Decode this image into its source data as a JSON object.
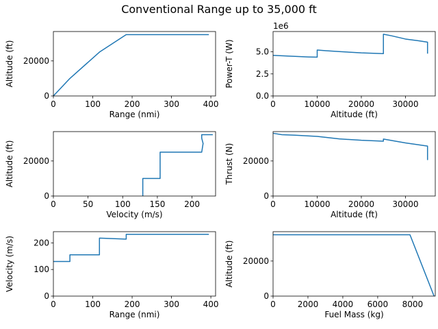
{
  "figure": {
    "title": "Conventional Range up to 35,000 ft"
  },
  "colors": {
    "line": "#1f77b4",
    "axes": "#000000",
    "background": "#ffffff"
  },
  "chart_data": [
    {
      "type": "line",
      "xlabel": "Range (nmi)",
      "ylabel": "Altitude (ft)",
      "xlim": [
        0,
        412
      ],
      "ylim": [
        0,
        36750
      ],
      "xticks": [
        0,
        100,
        200,
        300,
        400
      ],
      "xticklabels": [
        "0",
        "100",
        "200",
        "300",
        "400"
      ],
      "yticks": [
        0,
        20000
      ],
      "yticklabels": [
        "0",
        "20000"
      ],
      "offset_text": "",
      "series": [
        {
          "x": [
            0,
            42,
            117,
            185,
            395
          ],
          "y": [
            0,
            10000,
            25000,
            35000,
            35000
          ]
        }
      ]
    },
    {
      "type": "line",
      "xlabel": "Altitude (ft)",
      "ylabel": "Power-T (W)",
      "xlim": [
        0,
        36750
      ],
      "ylim": [
        0,
        7.3
      ],
      "xticks": [
        0,
        10000,
        20000,
        30000
      ],
      "xticklabels": [
        "0",
        "10000",
        "20000",
        "30000"
      ],
      "yticks": [
        0,
        2.5,
        5.0
      ],
      "yticklabels": [
        "0.0",
        "2.5",
        "5.0"
      ],
      "offset_text": "1e6",
      "series": [
        {
          "x": [
            0,
            2000,
            5000,
            8000,
            10000,
            10000,
            12000,
            15000,
            20000,
            25000,
            25000,
            27000,
            30000,
            33000,
            35000,
            35000
          ],
          "y": [
            4.6,
            4.55,
            4.48,
            4.42,
            4.4,
            5.2,
            5.13,
            5.03,
            4.88,
            4.8,
            7.0,
            6.8,
            6.45,
            6.25,
            6.1,
            4.8
          ]
        }
      ]
    },
    {
      "type": "line",
      "xlabel": "Velocity (m/s)",
      "ylabel": "Altitude (ft)",
      "xlim": [
        0,
        234
      ],
      "ylim": [
        0,
        36750
      ],
      "xticks": [
        0,
        50,
        100,
        150,
        200
      ],
      "xticklabels": [
        "0",
        "50",
        "100",
        "150",
        "200"
      ],
      "yticks": [
        0,
        20000
      ],
      "yticklabels": [
        "0",
        "20000"
      ],
      "offset_text": "",
      "series": [
        {
          "x": [
            129,
            129,
            154,
            154,
            214,
            216,
            214,
            214,
            230
          ],
          "y": [
            0,
            10000,
            10000,
            25000,
            25000,
            30000,
            33000,
            35000,
            35000
          ]
        }
      ]
    },
    {
      "type": "line",
      "xlabel": "Altitude (ft)",
      "ylabel": "Thrust (N)",
      "xlim": [
        0,
        36750
      ],
      "ylim": [
        0,
        36750
      ],
      "xticks": [
        0,
        10000,
        20000,
        30000
      ],
      "xticklabels": [
        "0",
        "10000",
        "20000",
        "30000"
      ],
      "yticks": [
        0,
        20000
      ],
      "yticklabels": [
        "0",
        "20000"
      ],
      "offset_text": "",
      "series": [
        {
          "x": [
            0,
            2000,
            5000,
            10000,
            15000,
            20000,
            25000,
            25000,
            30000,
            35000,
            35000
          ],
          "y": [
            35800,
            35000,
            34700,
            34000,
            32600,
            31800,
            31300,
            32500,
            30300,
            28500,
            20500
          ]
        }
      ]
    },
    {
      "type": "line",
      "xlabel": "Range (nmi)",
      "ylabel": "Velocity (m/s)",
      "xlim": [
        0,
        412
      ],
      "ylim": [
        0,
        242
      ],
      "xticks": [
        0,
        100,
        200,
        300,
        400
      ],
      "xticklabels": [
        "0",
        "100",
        "200",
        "300",
        "400"
      ],
      "yticks": [
        0,
        100,
        200
      ],
      "yticklabels": [
        "0",
        "100",
        "200"
      ],
      "offset_text": "",
      "series": [
        {
          "x": [
            0,
            42,
            42,
            117,
            117,
            185,
            185,
            395
          ],
          "y": [
            130,
            130,
            155,
            155,
            218,
            214,
            232,
            232
          ]
        }
      ]
    },
    {
      "type": "line",
      "xlabel": "Fuel Mass (kg)",
      "ylabel": "Altitude (ft)",
      "xlim": [
        0,
        9300
      ],
      "ylim": [
        0,
        36750
      ],
      "xticks": [
        0,
        2000,
        4000,
        6000,
        8000
      ],
      "xticklabels": [
        "0",
        "2000",
        "4000",
        "6000",
        "8000"
      ],
      "yticks": [
        0,
        20000
      ],
      "yticklabels": [
        "0",
        "20000"
      ],
      "offset_text": "",
      "series": [
        {
          "x": [
            0,
            7850,
            9230
          ],
          "y": [
            35000,
            35000,
            0
          ]
        }
      ]
    }
  ]
}
